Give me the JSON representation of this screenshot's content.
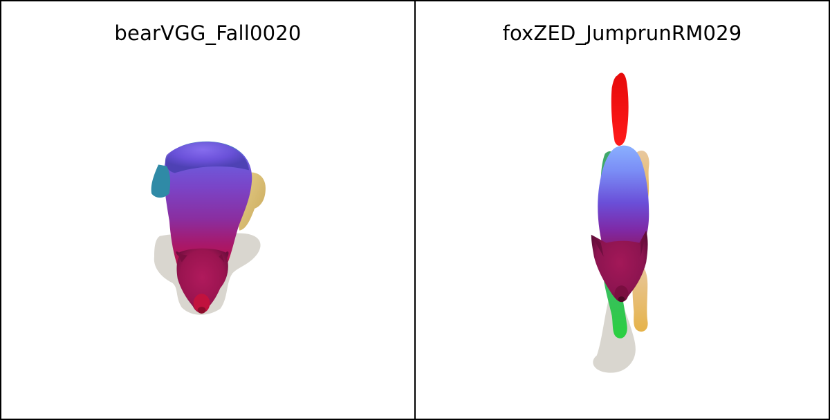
{
  "panels": [
    {
      "title": "bearVGG_Fall0020",
      "subject": "bear mesh render"
    },
    {
      "title": "foxZED_JumprunRM029",
      "subject": "fox mesh render"
    }
  ],
  "colors": {
    "border": "#000000",
    "background": "#ffffff",
    "shadow": "#d8d6d0"
  }
}
